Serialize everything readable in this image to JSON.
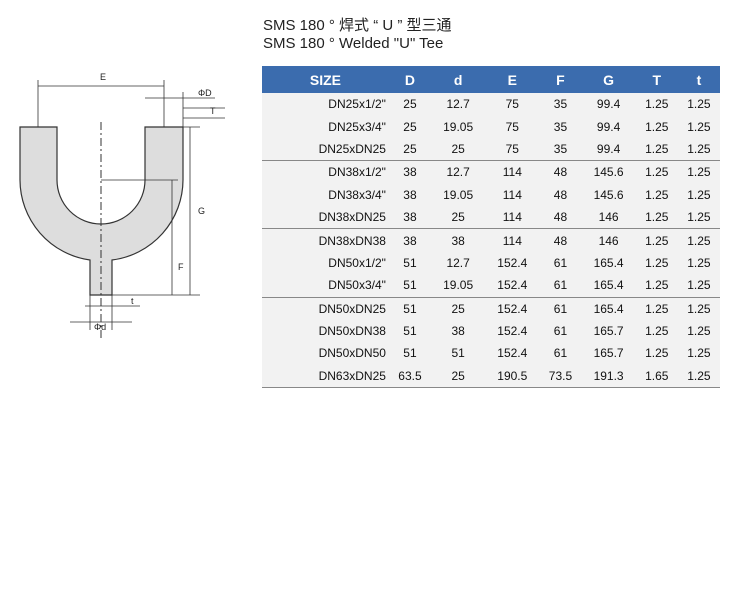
{
  "header": {
    "title_cn": "SMS 180 ° 焊式 “ U ” 型三通",
    "title_en": "SMS 180 °  Welded \"U\" Tee"
  },
  "drawing": {
    "labels": {
      "E": "E",
      "D": "ΦD",
      "T": "T",
      "G": "G",
      "F": "F",
      "t": "t",
      "d": "Φd"
    }
  },
  "table": {
    "columns": [
      "SIZE",
      "D",
      "d",
      "E",
      "F",
      "G",
      "T",
      "t"
    ],
    "rows": [
      [
        "DN25x1/2\"",
        "25",
        "12.7",
        "75",
        "35",
        "99.4",
        "1.25",
        "1.25"
      ],
      [
        "DN25x3/4\"",
        "25",
        "19.05",
        "75",
        "35",
        "99.4",
        "1.25",
        "1.25"
      ],
      [
        "DN25xDN25",
        "25",
        "25",
        "75",
        "35",
        "99.4",
        "1.25",
        "1.25"
      ],
      [
        "DN38x1/2\"",
        "38",
        "12.7",
        "114",
        "48",
        "145.6",
        "1.25",
        "1.25"
      ],
      [
        "DN38x3/4\"",
        "38",
        "19.05",
        "114",
        "48",
        "145.6",
        "1.25",
        "1.25"
      ],
      [
        "DN38xDN25",
        "38",
        "25",
        "114",
        "48",
        "146",
        "1.25",
        "1.25"
      ],
      [
        "DN38xDN38",
        "38",
        "38",
        "114",
        "48",
        "146",
        "1.25",
        "1.25"
      ],
      [
        "DN50x1/2\"",
        "51",
        "12.7",
        "152.4",
        "61",
        "165.4",
        "1.25",
        "1.25"
      ],
      [
        "DN50x3/4\"",
        "51",
        "19.05",
        "152.4",
        "61",
        "165.4",
        "1.25",
        "1.25"
      ],
      [
        "DN50xDN25",
        "51",
        "25",
        "152.4",
        "61",
        "165.4",
        "1.25",
        "1.25"
      ],
      [
        "DN50xDN38",
        "51",
        "38",
        "152.4",
        "61",
        "165.7",
        "1.25",
        "1.25"
      ],
      [
        "DN50xDN50",
        "51",
        "51",
        "152.4",
        "61",
        "165.7",
        "1.25",
        "1.25"
      ],
      [
        "DN63xDN25",
        "63.5",
        "25",
        "190.5",
        "73.5",
        "191.3",
        "1.65",
        "1.25"
      ]
    ]
  }
}
